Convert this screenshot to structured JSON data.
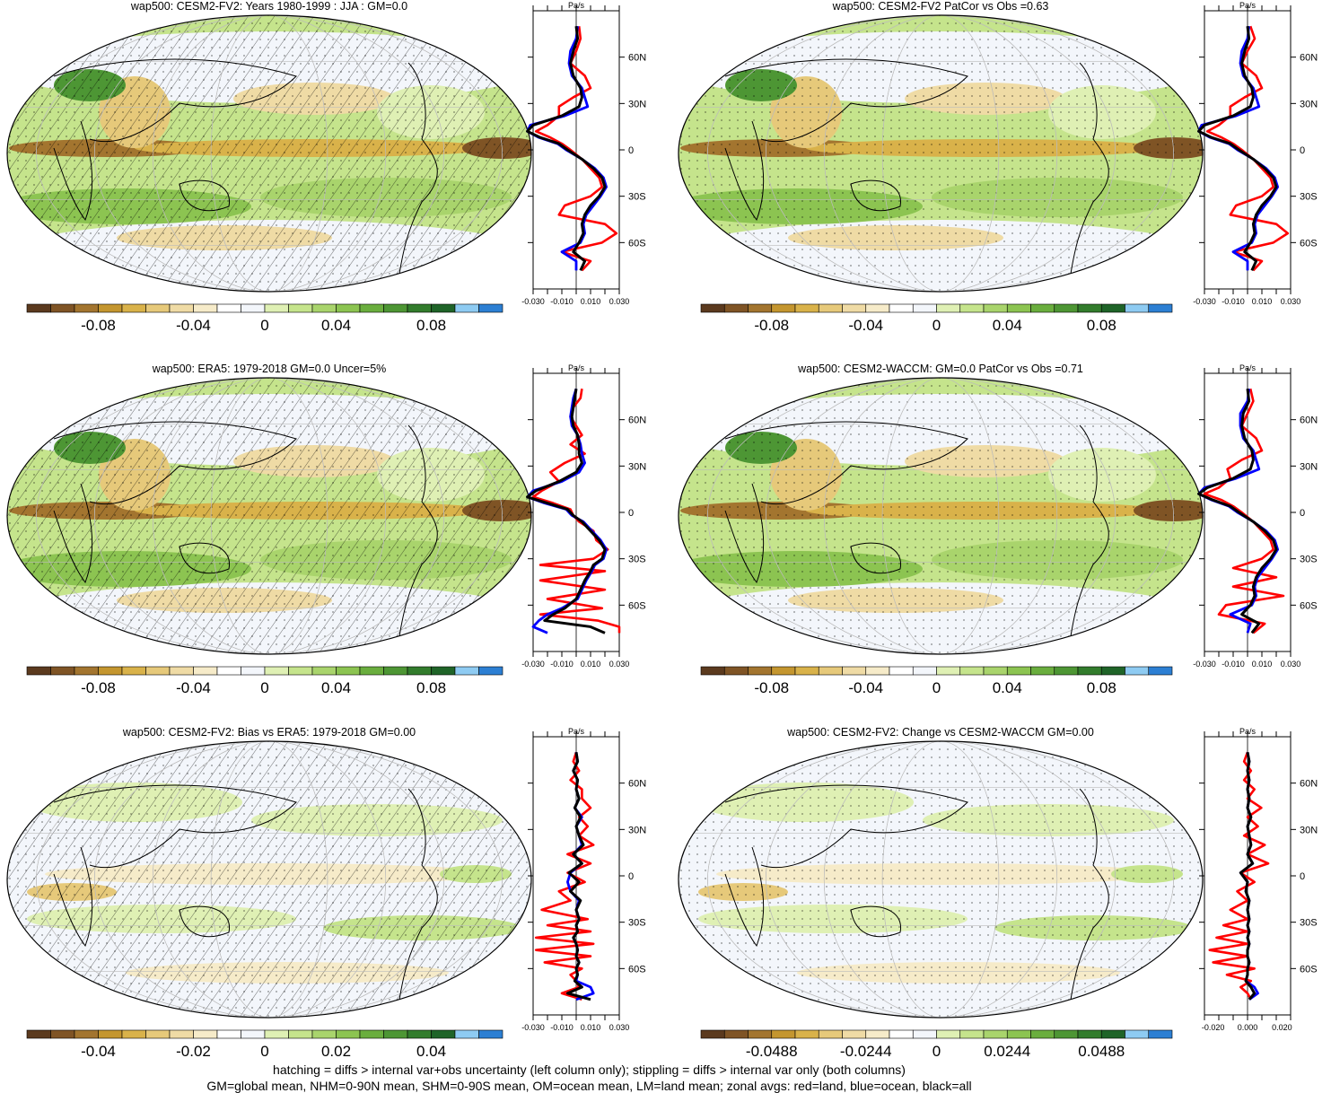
{
  "figure": {
    "footer_line1": "hatching = diffs > internal var+obs uncertainty (left column only); stippling = diffs > internal var only (both columns)",
    "footer_line2": "GM=global mean, NHM=0-90N mean, SHM=0-90S mean, OM=ocean mean, LM=land mean; zonal avgs: red=land, blue=ocean, black=all"
  },
  "colors": {
    "land": "#ff0000",
    "ocean": "#0000ff",
    "all": "#000000",
    "colorbar": [
      "#5b3a1e",
      "#7f5425",
      "#a3752f",
      "#c4962f",
      "#d9b24a",
      "#e6c97a",
      "#efdba5",
      "#f6ebc9",
      "#ffffff",
      "#f3f6fb",
      "#dff0b4",
      "#c5e48c",
      "#a9d46c",
      "#8cc451",
      "#6aae3e",
      "#4d9634",
      "#327c2c",
      "#1f6428",
      "#8ecbf2",
      "#2c7fd3"
    ]
  },
  "chart_data": [
    {
      "id": "p1",
      "type": "heatmap",
      "title": "wap500: CESM2-FV2: Years 1980-1999 : JJA : GM=0.0",
      "colorbar_ticks": [
        "-0.08",
        "-0.04",
        "0",
        "0.04",
        "0.08"
      ],
      "zonal": {
        "unit_label": "Pa/s",
        "xlim": [
          -0.03,
          0.03
        ],
        "x_ticks": [
          "-0.030",
          "-0.010",
          "0.010",
          "0.030"
        ],
        "y_ticks": [
          "60N",
          "30N",
          "0",
          "30S",
          "60S"
        ],
        "lat": [
          80,
          72,
          64,
          56,
          48,
          40,
          34,
          28,
          22,
          16,
          12,
          8,
          4,
          0,
          -6,
          -12,
          -18,
          -24,
          -30,
          -36,
          -42,
          -48,
          -54,
          -60,
          -66,
          -72,
          -78
        ],
        "all": [
          0.0,
          0.001,
          -0.002,
          -0.004,
          -0.002,
          0.003,
          0.004,
          0.002,
          -0.01,
          -0.03,
          -0.035,
          -0.025,
          -0.012,
          -0.006,
          0.004,
          0.012,
          0.018,
          0.02,
          0.016,
          0.01,
          0.006,
          0.004,
          0.005,
          0.002,
          -0.002,
          0.006,
          0.003
        ],
        "land": [
          0.002,
          0.003,
          0.0,
          -0.004,
          0.006,
          0.01,
          -0.002,
          -0.012,
          -0.012,
          -0.02,
          -0.028,
          -0.018,
          -0.01,
          -0.004,
          0.004,
          0.01,
          0.016,
          0.018,
          0.01,
          -0.008,
          -0.012,
          0.02,
          0.028,
          0.018,
          -0.01,
          0.01,
          0.004
        ],
        "ocean": [
          0.001,
          0.0,
          -0.004,
          -0.005,
          -0.003,
          0.004,
          0.006,
          0.008,
          -0.008,
          -0.032,
          -0.037,
          -0.026,
          -0.013,
          -0.007,
          0.004,
          0.013,
          0.019,
          0.021,
          0.017,
          0.012,
          0.007,
          0.005,
          0.006,
          0.003,
          -0.01,
          0.0,
          0.0
        ]
      }
    },
    {
      "id": "p2",
      "type": "heatmap",
      "title": "wap500: CESM2-FV2 PatCor vs Obs =0.63",
      "colorbar_ticks": [
        "-0.08",
        "-0.04",
        "0",
        "0.04",
        "0.08"
      ],
      "zonal": {
        "unit_label": "Pa/s",
        "xlim": [
          -0.03,
          0.03
        ],
        "x_ticks": [
          "-0.030",
          "-0.010",
          "0.010",
          "0.030"
        ],
        "y_ticks": [
          "60N",
          "30N",
          "0",
          "30S",
          "60S"
        ],
        "lat": [
          80,
          72,
          64,
          56,
          48,
          40,
          34,
          28,
          22,
          16,
          12,
          8,
          4,
          0,
          -6,
          -12,
          -18,
          -24,
          -30,
          -36,
          -42,
          -48,
          -54,
          -60,
          -66,
          -72,
          -78
        ],
        "all": [
          0.0,
          0.001,
          -0.002,
          -0.004,
          -0.002,
          0.003,
          0.004,
          0.002,
          -0.01,
          -0.03,
          -0.035,
          -0.025,
          -0.012,
          -0.006,
          0.004,
          0.012,
          0.018,
          0.02,
          0.016,
          0.01,
          0.006,
          0.004,
          0.005,
          0.002,
          -0.002,
          0.006,
          0.003
        ],
        "land": [
          0.002,
          0.005,
          0.0,
          -0.004,
          0.006,
          0.01,
          -0.002,
          -0.012,
          -0.012,
          -0.02,
          -0.028,
          -0.018,
          -0.01,
          -0.004,
          0.004,
          0.01,
          0.016,
          0.018,
          0.01,
          -0.008,
          -0.012,
          0.02,
          0.028,
          0.018,
          -0.01,
          0.01,
          0.004
        ],
        "ocean": [
          0.001,
          0.0,
          -0.004,
          -0.005,
          -0.003,
          0.004,
          0.006,
          0.008,
          -0.008,
          -0.032,
          -0.037,
          -0.026,
          -0.013,
          -0.007,
          0.004,
          0.013,
          0.019,
          0.021,
          0.017,
          0.012,
          0.007,
          0.005,
          0.006,
          0.003,
          -0.01,
          0.0,
          0.0
        ]
      }
    },
    {
      "id": "p3",
      "type": "heatmap",
      "title": "wap500: ERA5: 1979-2018 GM=0.0 Uncer=5%",
      "colorbar_ticks": [
        "-0.08",
        "-0.04",
        "0",
        "0.04",
        "0.08"
      ],
      "zonal": {
        "unit_label": "Pa/s",
        "xlim": [
          -0.03,
          0.03
        ],
        "x_ticks": [
          "-0.030",
          "-0.010",
          "0.010",
          "0.030"
        ],
        "y_ticks": [
          "60N",
          "30N",
          "0",
          "30S",
          "60S"
        ],
        "lat": [
          80,
          74,
          68,
          62,
          56,
          50,
          44,
          38,
          32,
          26,
          20,
          14,
          10,
          6,
          2,
          -2,
          -6,
          -12,
          -18,
          -24,
          -30,
          -34,
          -38,
          -44,
          -50,
          -56,
          -62,
          -66,
          -70,
          -74,
          -78
        ],
        "all": [
          0.0,
          -0.001,
          -0.002,
          -0.003,
          -0.002,
          0.001,
          0.002,
          0.002,
          0.004,
          0.0,
          -0.012,
          -0.028,
          -0.035,
          -0.02,
          -0.006,
          -0.002,
          0.004,
          0.01,
          0.016,
          0.02,
          0.018,
          0.012,
          0.01,
          0.006,
          0.003,
          0.0,
          -0.008,
          -0.016,
          -0.022,
          0.01,
          0.02
        ],
        "land": [
          0.004,
          0.003,
          -0.002,
          -0.004,
          0.0,
          0.004,
          -0.004,
          0.006,
          -0.008,
          -0.018,
          -0.012,
          -0.024,
          -0.03,
          -0.016,
          -0.004,
          -0.002,
          0.002,
          0.012,
          0.014,
          0.022,
          0.012,
          -0.025,
          0.02,
          -0.025,
          0.02,
          -0.02,
          0.018,
          -0.025,
          0.015,
          0.03,
          0.03
        ],
        "ocean": [
          0.0,
          -0.002,
          -0.003,
          -0.004,
          -0.003,
          0.001,
          0.003,
          0.004,
          0.006,
          0.002,
          -0.01,
          -0.03,
          -0.036,
          -0.022,
          -0.007,
          -0.003,
          0.005,
          0.011,
          0.017,
          0.021,
          0.019,
          0.013,
          0.011,
          0.007,
          0.004,
          0.001,
          -0.01,
          -0.02,
          -0.026,
          -0.03,
          -0.02
        ]
      }
    },
    {
      "id": "p4",
      "type": "heatmap",
      "title": "wap500: CESM2-WACCM: GM=0.0 PatCor vs Obs =0.71",
      "colorbar_ticks": [
        "-0.08",
        "-0.04",
        "0",
        "0.04",
        "0.08"
      ],
      "zonal": {
        "unit_label": "Pa/s",
        "xlim": [
          -0.03,
          0.03
        ],
        "x_ticks": [
          "-0.030",
          "-0.010",
          "0.010",
          "0.030"
        ],
        "y_ticks": [
          "60N",
          "30N",
          "0",
          "30S",
          "60S"
        ],
        "lat": [
          80,
          72,
          64,
          56,
          48,
          40,
          34,
          28,
          22,
          16,
          12,
          8,
          4,
          0,
          -6,
          -12,
          -18,
          -24,
          -30,
          -36,
          -42,
          -48,
          -54,
          -60,
          -66,
          -72,
          -78
        ],
        "all": [
          0.0,
          0.001,
          -0.003,
          -0.004,
          -0.002,
          0.003,
          0.004,
          0.002,
          -0.01,
          -0.028,
          -0.035,
          -0.024,
          -0.012,
          -0.006,
          0.004,
          0.012,
          0.018,
          0.02,
          0.016,
          0.01,
          0.006,
          0.004,
          0.005,
          0.002,
          -0.004,
          0.008,
          0.003
        ],
        "land": [
          0.002,
          0.004,
          0.0,
          -0.004,
          0.006,
          0.01,
          -0.004,
          -0.014,
          -0.012,
          -0.02,
          -0.03,
          -0.018,
          -0.01,
          -0.004,
          0.004,
          0.01,
          0.016,
          0.018,
          0.01,
          -0.01,
          0.02,
          -0.01,
          0.025,
          -0.015,
          -0.02,
          0.012,
          0.004
        ],
        "ocean": [
          0.001,
          0.0,
          -0.005,
          -0.005,
          -0.003,
          0.004,
          0.006,
          0.008,
          -0.008,
          -0.03,
          -0.037,
          -0.025,
          -0.013,
          -0.007,
          0.004,
          0.013,
          0.019,
          0.021,
          0.017,
          0.012,
          0.007,
          0.005,
          0.006,
          0.003,
          -0.012,
          0.002,
          0.0
        ]
      }
    },
    {
      "id": "p5",
      "type": "heatmap",
      "title": "wap500: CESM2-FV2: Bias vs ERA5: 1979-2018 GM=0.00",
      "colorbar_ticks": [
        "-0.04",
        "-0.02",
        "0",
        "0.02",
        "0.04"
      ],
      "zonal": {
        "unit_label": "Pa/s",
        "xlim": [
          -0.03,
          0.03
        ],
        "x_ticks": [
          "-0.030",
          "-0.010",
          "0.010",
          "0.030"
        ],
        "y_ticks": [
          "60N",
          "30N",
          "0",
          "30S",
          "60S"
        ],
        "lat": [
          80,
          74,
          68,
          62,
          56,
          50,
          44,
          38,
          32,
          26,
          20,
          14,
          8,
          2,
          -4,
          -10,
          -16,
          -22,
          -28,
          -32,
          -36,
          -40,
          -44,
          -48,
          -52,
          -56,
          -60,
          -64,
          -68,
          -72,
          -76,
          -80
        ],
        "all": [
          0.0,
          0.001,
          -0.002,
          0.001,
          0.0,
          0.002,
          -0.001,
          0.003,
          0.0,
          0.002,
          0.005,
          -0.002,
          0.004,
          -0.005,
          0.002,
          -0.004,
          0.003,
          0.0,
          0.002,
          0.0,
          0.001,
          -0.002,
          0.0,
          0.001,
          0.0,
          0.002,
          0.0,
          0.001,
          -0.001,
          0.004,
          -0.006,
          0.01
        ],
        "land": [
          0.0,
          -0.002,
          0.002,
          -0.004,
          0.004,
          0.004,
          0.01,
          0.002,
          0.008,
          0.002,
          0.012,
          -0.006,
          0.01,
          -0.006,
          0.006,
          -0.012,
          -0.004,
          -0.024,
          0.008,
          -0.02,
          0.01,
          -0.028,
          0.012,
          -0.028,
          0.01,
          -0.022,
          0.004,
          -0.004,
          0.0,
          0.002,
          -0.01,
          0.004
        ],
        "ocean": [
          0.0,
          0.001,
          -0.002,
          0.001,
          0.0,
          0.002,
          -0.001,
          0.004,
          0.0,
          0.002,
          0.004,
          -0.002,
          0.004,
          -0.004,
          -0.006,
          -0.004,
          0.002,
          0.0,
          0.002,
          0.0,
          0.001,
          -0.002,
          0.0,
          0.001,
          0.0,
          0.002,
          0.0,
          0.001,
          0.0,
          0.01,
          0.012,
          0.0
        ]
      }
    },
    {
      "id": "p6",
      "type": "heatmap",
      "title": "wap500: CESM2-FV2: Change vs CESM2-WACCM GM=0.00",
      "colorbar_ticks": [
        "-0.0488",
        "-0.0244",
        "0",
        "0.0244",
        "0.0488"
      ],
      "zonal": {
        "unit_label": "Pa/s",
        "xlim": [
          -0.025,
          0.025
        ],
        "x_ticks": [
          "-0.020",
          "0.000",
          "0.020"
        ],
        "y_ticks": [
          "60N",
          "30N",
          "0",
          "30S",
          "60S"
        ],
        "lat": [
          80,
          74,
          68,
          62,
          56,
          50,
          44,
          38,
          32,
          26,
          20,
          14,
          8,
          2,
          -4,
          -10,
          -16,
          -22,
          -28,
          -32,
          -36,
          -40,
          -44,
          -48,
          -52,
          -56,
          -60,
          -64,
          -68,
          -72,
          -76,
          -80
        ],
        "all": [
          0.0,
          0.001,
          0.0,
          0.001,
          0.0,
          0.001,
          0.0,
          0.002,
          0.0,
          0.001,
          0.002,
          0.0,
          0.003,
          -0.004,
          0.0,
          -0.001,
          0.001,
          0.0,
          0.001,
          0.0,
          0.001,
          0.0,
          0.001,
          0.0,
          0.0,
          0.001,
          0.0,
          0.0,
          -0.001,
          0.002,
          0.004,
          0.001
        ],
        "land": [
          0.0,
          -0.002,
          0.002,
          -0.002,
          0.004,
          0.0,
          0.008,
          0.0,
          0.006,
          -0.002,
          0.01,
          0.0,
          0.012,
          -0.004,
          0.004,
          -0.006,
          0.0,
          -0.01,
          0.0,
          -0.014,
          0.0,
          -0.018,
          0.0,
          -0.022,
          0.0,
          -0.02,
          0.004,
          -0.012,
          0.002,
          -0.004,
          0.0,
          0.002
        ],
        "ocean": [
          0.0,
          0.001,
          0.0,
          0.001,
          0.0,
          0.001,
          0.0,
          0.002,
          0.0,
          0.001,
          0.002,
          0.0,
          0.003,
          -0.004,
          0.0,
          -0.001,
          0.001,
          0.0,
          0.001,
          0.0,
          0.001,
          0.0,
          0.001,
          0.0,
          0.0,
          0.001,
          0.0,
          0.0,
          -0.001,
          0.004,
          0.006,
          0.001
        ]
      }
    }
  ]
}
